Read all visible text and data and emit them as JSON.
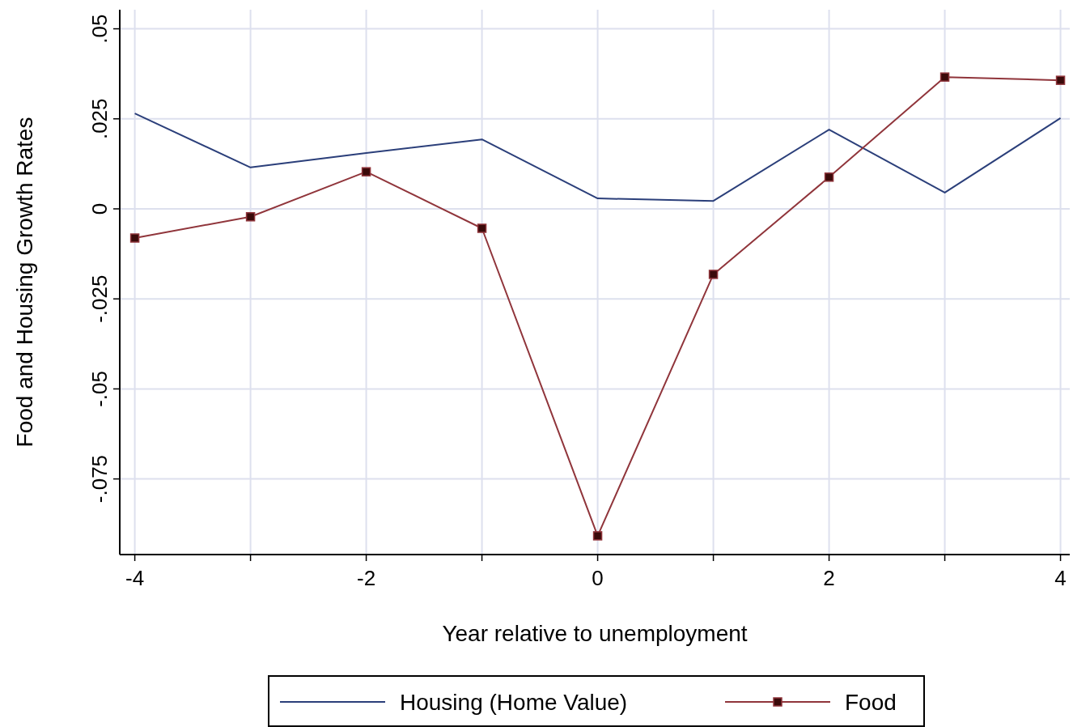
{
  "chart_data": {
    "type": "line",
    "xlabel": "Year relative to unemployment",
    "ylabel": "Food and Housing Growth Rates",
    "x": [
      -4,
      -3,
      -2,
      -1,
      0,
      1,
      2,
      3,
      4
    ],
    "series": [
      {
        "name": "Housing (Home Value)",
        "color": "#2b3f7a",
        "marker": "none",
        "values": [
          0.0265,
          0.0115,
          0.0155,
          0.0193,
          0.0029,
          0.0022,
          0.022,
          0.0045,
          0.0252
        ]
      },
      {
        "name": "Food",
        "color": "#90353b",
        "marker": "square",
        "values": [
          -0.0081,
          -0.0022,
          0.0103,
          -0.0054,
          -0.0908,
          -0.0182,
          0.0088,
          0.0366,
          0.0357
        ]
      }
    ],
    "xlim": [
      -4.13,
      4.08
    ],
    "ylim": [
      -0.096,
      0.0553
    ],
    "xticks": [
      -4,
      {
        "value": -3,
        "label": null
      },
      -2,
      {
        "value": -1,
        "label": null
      },
      0,
      {
        "value": 1,
        "label": null
      },
      2,
      {
        "value": 3,
        "label": null
      },
      4
    ],
    "yticks": [
      {
        "value": -0.075,
        "label": "-.075"
      },
      {
        "value": -0.05,
        "label": "-.05"
      },
      {
        "value": -0.025,
        "label": "-.025"
      },
      0,
      {
        "value": 0.025,
        "label": ".025"
      },
      {
        "value": 0.05,
        "label": ".05"
      }
    ],
    "grid": true,
    "legend": "bottom"
  }
}
